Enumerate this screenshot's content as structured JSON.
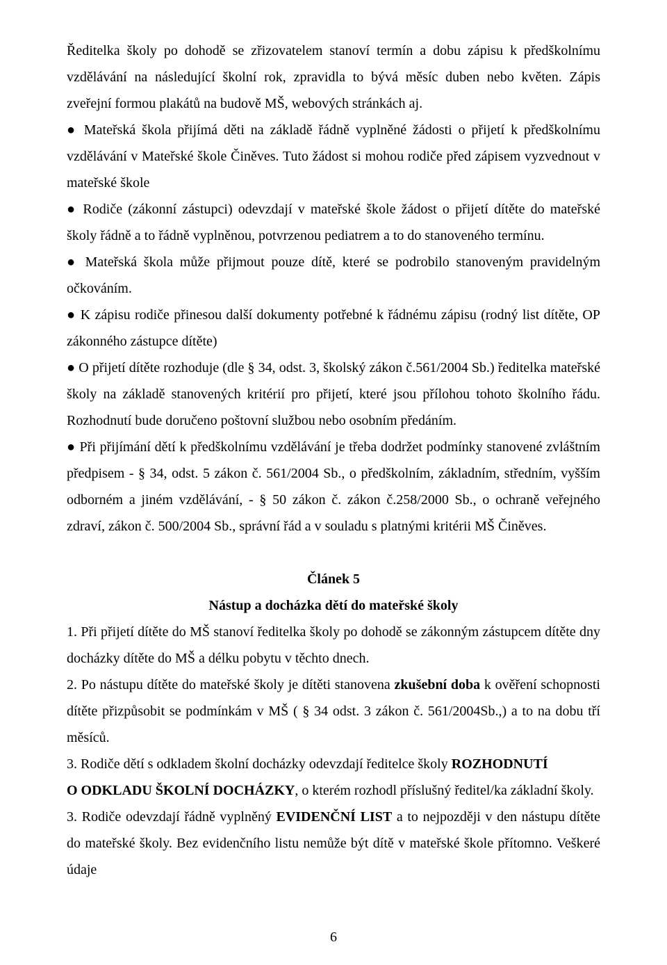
{
  "page": {
    "number": "6",
    "fontFamily": "Times New Roman",
    "fontSizePx": 20,
    "lineHeight": 1.9,
    "textColor": "#000000",
    "backgroundColor": "#ffffff"
  },
  "para": {
    "intro": "Ředitelka školy po dohodě se zřizovatelem stanoví termín a dobu zápisu k předškolnímu vzdělávání na následující školní rok, zpravidla to bývá měsíc duben nebo květen. Zápis zveřejní formou plakátů na budově MŠ, webových stránkách aj.",
    "b1": "● Mateřská škola přijímá děti na základě řádně vyplněné žádosti o přijetí k předškolnímu vzdělávání v Mateřské škole Činěves. Tuto žádost si mohou rodiče před zápisem vyzvednout v mateřské škole",
    "b2": "● Rodiče (zákonní zástupci) odevzdají v mateřské škole žádost o přijetí dítěte do mateřské školy řádně a to řádně vyplněnou, potvrzenou pediatrem a to do stanoveného termínu.",
    "b3": "● Mateřská škola může přijmout pouze dítě, které se podrobilo stanoveným pravidelným očkováním.",
    "b4": "● K zápisu rodiče přinesou další dokumenty potřebné k řádnému zápisu (rodný list dítěte, OP zákonného zástupce dítěte)",
    "b5": "● O přijetí dítěte rozhoduje (dle § 34, odst. 3, školský zákon č.561/2004 Sb.) ředitelka mateřské školy na základě stanovených kritérií pro přijetí, které jsou přílohou tohoto školního řádu. Rozhodnutí bude doručeno poštovní službou nebo osobním předáním.",
    "b6": "● Při přijímání dětí k předškolnímu vzdělávání je třeba dodržet podmínky stanovené zvláštním předpisem - § 34, odst. 5 zákon č. 561/2004 Sb., o předškolním, základním, středním, vyšším odborném a jiném vzdělávání, - § 50 zákon č. zákon č.258/2000 Sb., o ochraně veřejného zdraví, zákon č. 500/2004 Sb., správní řád a v souladu s platnými kritérii MŠ Činěves."
  },
  "article5": {
    "heading": "Článek 5",
    "subheading": "Nástup a docházka dětí do mateřské školy",
    "p1": "1. Při přijetí dítěte do MŠ stanoví ředitelka školy po dohodě se zákonným zástupcem dítěte dny docházky dítěte do MŠ a délku pobytu v těchto dnech.",
    "p2a": "2. Po nástupu dítěte do mateřské školy je dítěti stanovena ",
    "p2bold": "zkušební doba",
    "p2b": " k ověření schopnosti dítěte přizpůsobit se podmínkám v MŠ ( § 34 odst. 3 zákon č. 561/2004Sb.,) a to na dobu tří měsíců.",
    "p3a": "3. Rodiče dětí s odkladem školní docházky odevzdají ředitelce školy ",
    "p3bold1": "ROZHODNUTÍ",
    "p3line2a": "O ODKLADU ŠKOLNÍ DOCHÁZKY",
    "p3line2b": ", o kterém rozhodl příslušný ředitel/ka základní školy.",
    "p4a": "3. Rodiče odevzdají řádně vyplněný ",
    "p4bold": "EVIDENČNÍ LIST",
    "p4b": " a to nejpozději v den nástupu dítěte do mateřské školy. Bez evidenčního listu nemůže být dítě v mateřské škole přítomno. Veškeré údaje"
  }
}
